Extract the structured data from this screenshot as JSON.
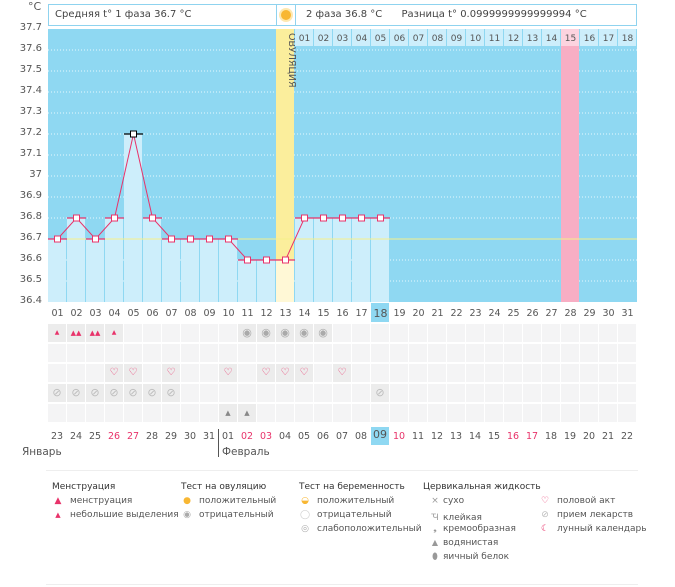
{
  "header": {
    "unit": "°C",
    "phase1": "Средняя t° 1 фаза 36.7 °C",
    "phase2": "2 фаза 36.8 °C",
    "difference": "Разница t° 0.0999999999999994 °C",
    "ovulation_label": "ОВУЛЯЦИЯ"
  },
  "chart_data": {
    "type": "line",
    "title": "",
    "ylabel": "°C",
    "ylim": [
      36.4,
      37.7
    ],
    "yticks": [
      "37.7",
      "37.6",
      "37.5",
      "37.4",
      "37.3",
      "37.2",
      "37.1",
      "37",
      "36.9",
      "36.8",
      "36.7",
      "36.6",
      "36.5",
      "36.4"
    ],
    "cycle_days": [
      "01",
      "02",
      "03",
      "04",
      "05",
      "06",
      "07",
      "08",
      "09",
      "10",
      "11",
      "12",
      "13",
      "14",
      "15",
      "16",
      "17",
      "18",
      "19",
      "20",
      "21",
      "22",
      "23",
      "24",
      "25",
      "26",
      "27",
      "28",
      "29",
      "30",
      "31"
    ],
    "temperatures": [
      36.7,
      36.8,
      36.7,
      36.8,
      37.2,
      36.8,
      36.7,
      36.7,
      36.7,
      36.7,
      36.6,
      36.6,
      36.6,
      36.8,
      36.8,
      36.8,
      36.8,
      36.8
    ],
    "coverline": 36.7,
    "ovulation_day": "13",
    "phase2_days": [
      "01",
      "02",
      "03",
      "04",
      "05",
      "06",
      "07",
      "08",
      "09",
      "10",
      "11",
      "12",
      "13",
      "14",
      "15",
      "16",
      "17",
      "18"
    ],
    "highlight_phase2_day": "15",
    "today_cycle_day": "18",
    "calendar_dates": [
      "23",
      "24",
      "25",
      "26",
      "27",
      "28",
      "29",
      "30",
      "31",
      "01",
      "02",
      "03",
      "04",
      "05",
      "06",
      "07",
      "08",
      "09",
      "10",
      "11",
      "12",
      "13",
      "14",
      "15",
      "16",
      "17",
      "18",
      "19",
      "20",
      "21",
      "22"
    ],
    "red_dates_index": [
      3,
      4,
      10,
      11,
      18,
      24,
      25
    ],
    "today_date_index": 17,
    "months": [
      "Январь",
      "Февраль"
    ],
    "rows": {
      "menstruation": [
        "small",
        "heavy",
        "heavy",
        "small"
      ],
      "ovulation_test_negative_days": [
        11,
        12,
        13,
        14,
        15
      ],
      "intercourse_days": [
        4,
        5,
        7,
        10,
        12,
        13,
        14,
        16
      ],
      "medication_days": [
        1,
        2,
        3,
        4,
        5,
        6,
        7,
        18
      ],
      "cervical_watery_days": [
        10,
        11
      ]
    }
  },
  "legend": {
    "menstruation": {
      "title": "Менструация",
      "items": [
        "менструация",
        "небольшие выделения"
      ]
    },
    "ovulation_test": {
      "title": "Тест на овуляцию",
      "items": [
        "положительный",
        "отрицательный"
      ]
    },
    "pregnancy_test": {
      "title": "Тест на беременность",
      "items": [
        "положительный",
        "отрицательный",
        "слабоположительный"
      ]
    },
    "cervical_fluid": {
      "title": "Цервикальная жидкость",
      "items": [
        "сухо",
        "клейкая",
        "кремообразная",
        "водянистая",
        "яичный белок"
      ]
    },
    "other": {
      "items": [
        "половой акт",
        "прием лекарств",
        "лунный календарь"
      ]
    }
  },
  "colors": {
    "chart_bg": "#8fd8f2",
    "bar_fill": "#cdeefb",
    "line": "#e8336a",
    "ovulation": "#fbee9c",
    "pink_day": "#f8aec4",
    "coverline": "#f6f08a",
    "red_date": "#e8336a"
  }
}
